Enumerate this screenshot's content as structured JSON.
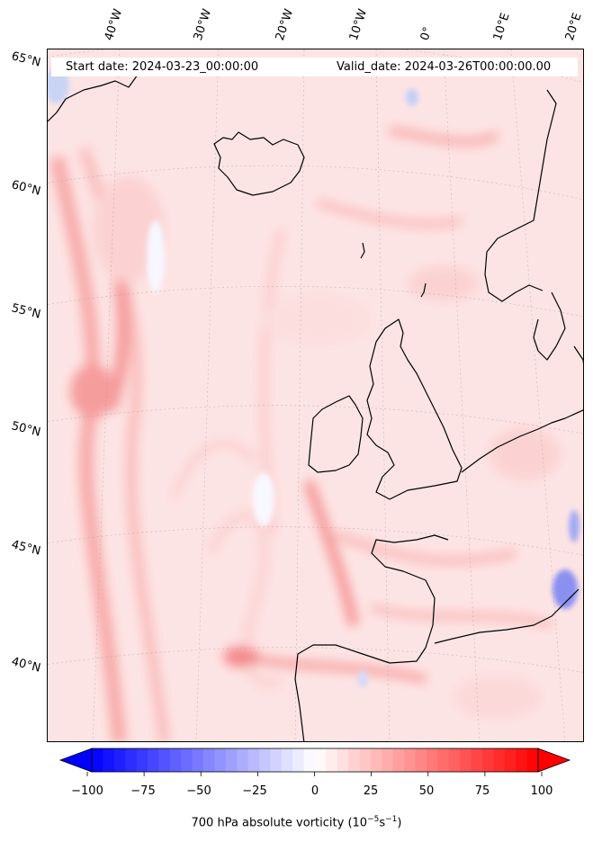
{
  "header": {
    "start_date": "Start date: 2024-03-23_00:00:00",
    "valid_date": "Valid_date: 2024-03-26T00:00:00.00"
  },
  "map": {
    "region": "North Atlantic and Western Europe",
    "latitude_labels": [
      "65°N",
      "60°N",
      "55°N",
      "50°N",
      "45°N",
      "40°N"
    ],
    "longitude_labels": [
      "40°W",
      "30°W",
      "20°W",
      "10°W",
      "0°",
      "10°E",
      "20°E"
    ],
    "field": "700 hPa absolute vorticity",
    "colormap": "bwr",
    "colors": {
      "positive": "#ff0000",
      "zero": "#ffffff",
      "negative": "#0000ff",
      "coastline": "#000000"
    }
  },
  "colorbar": {
    "ticks": [
      "−100",
      "−75",
      "−50",
      "−25",
      "0",
      "25",
      "50",
      "75",
      "100"
    ],
    "min": -100,
    "max": 100,
    "extend": "both",
    "label_prefix": "700 hPa absolute vorticity (10",
    "label_exp1": "−5",
    "label_mid": "s",
    "label_exp2": "−1",
    "label_suffix": ")"
  }
}
